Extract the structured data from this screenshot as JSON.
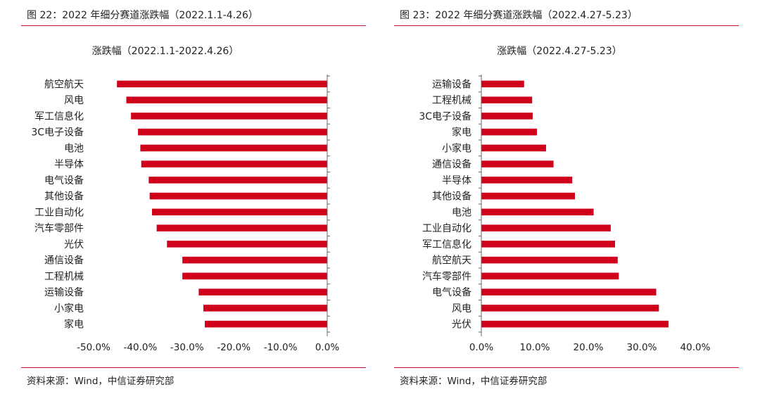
{
  "colors": {
    "bar": "#d0021b",
    "rule": "#c8102e",
    "axis": "#666666"
  },
  "figures": [
    {
      "figure_title": "图 22：2022 年细分赛道涨跌幅（2022.1.1-4.26）",
      "source": "资料来源：Wind，中信证券研究部",
      "chart_data": {
        "type": "bar",
        "orientation": "horizontal",
        "title": "涨跌幅（2022.1.1-2022.4.26）",
        "categories": [
          "航空航天",
          "风电",
          "军工信息化",
          "3C电子设备",
          "电池",
          "半导体",
          "电气设备",
          "其他设备",
          "工业自动化",
          "汽车零部件",
          "光伏",
          "通信设备",
          "工程机械",
          "运输设备",
          "小家电",
          "家电"
        ],
        "values": [
          -0.45,
          -0.43,
          -0.42,
          -0.405,
          -0.4,
          -0.398,
          -0.382,
          -0.38,
          -0.375,
          -0.365,
          -0.343,
          -0.31,
          -0.31,
          -0.275,
          -0.265,
          -0.262
        ],
        "xlim": [
          -0.5,
          0
        ],
        "xticks": [
          "-50.0%",
          "-40.0%",
          "-30.0%",
          "-20.0%",
          "-10.0%",
          "0.0%"
        ],
        "grid": false,
        "legend": "none"
      }
    },
    {
      "figure_title": "图 23：2022 年细分赛道涨跌幅（2022.4.27-5.23）",
      "source": "资料来源：Wind，中信证券研究部",
      "chart_data": {
        "type": "bar",
        "orientation": "horizontal",
        "title": "涨跌幅（2022.4.27-5.23）",
        "categories": [
          "运输设备",
          "工程机械",
          "3C电子设备",
          "家电",
          "小家电",
          "通信设备",
          "半导体",
          "其他设备",
          "电池",
          "工业自动化",
          "军工信息化",
          "航空航天",
          "汽车零部件",
          "电气设备",
          "风电",
          "光伏"
        ],
        "values": [
          0.08,
          0.095,
          0.096,
          0.104,
          0.121,
          0.135,
          0.17,
          0.175,
          0.21,
          0.242,
          0.25,
          0.255,
          0.257,
          0.327,
          0.332,
          0.35
        ],
        "xlim": [
          0,
          0.4
        ],
        "xticks": [
          "0.0%",
          "10.0%",
          "20.0%",
          "30.0%",
          "40.0%"
        ],
        "grid": false,
        "legend": "none"
      }
    }
  ]
}
